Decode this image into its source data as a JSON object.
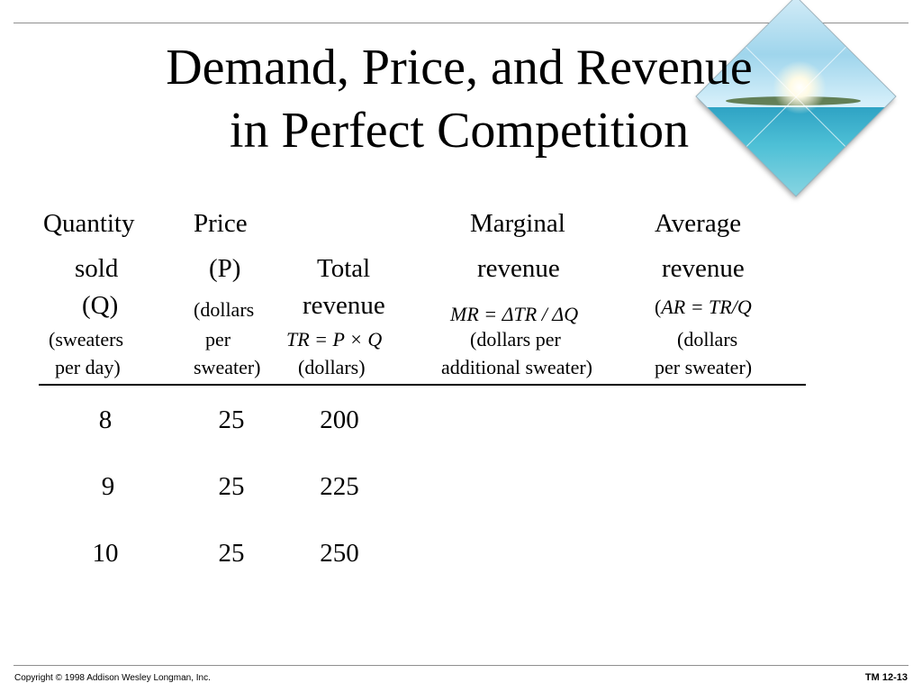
{
  "slide": {
    "title_line1": "Demand, Price, and Revenue",
    "title_line2": "in Perfect Competition"
  },
  "table": {
    "headers": {
      "quantity": {
        "l1": "Quantity",
        "l2": "sold",
        "l3": "(Q)",
        "l4": "(sweaters",
        "l5": "per day)"
      },
      "price": {
        "l1": "Price",
        "l2": "(P)",
        "l3": "(dollars",
        "l4": "per",
        "l5": "sweater)"
      },
      "total": {
        "l1": "Total",
        "l2": "revenue",
        "l3": "TR = P × Q",
        "l4": "(dollars)"
      },
      "marginal": {
        "l1": "Marginal",
        "l2": "revenue",
        "l3": "MR = ΔTR / ΔQ",
        "l4": "(dollars per",
        "l5": "additional sweater)"
      },
      "average": {
        "l1": "Average",
        "l2": "revenue",
        "l3_open": "(",
        "l3": "AR = TR/Q",
        "l4": "(dollars",
        "l5": "per sweater)"
      }
    },
    "rows": [
      {
        "quantity": "8",
        "price": "25",
        "total": "200"
      },
      {
        "quantity": "9",
        "price": "25",
        "total": "225"
      },
      {
        "quantity": "10",
        "price": "25",
        "total": "250"
      }
    ]
  },
  "footer": {
    "copyright": "Copyright © 1998 Addison Wesley Longman, Inc.",
    "slide_number": "TM 12-13"
  },
  "decoration": {
    "image": "tropical-island-diamond-picture"
  }
}
